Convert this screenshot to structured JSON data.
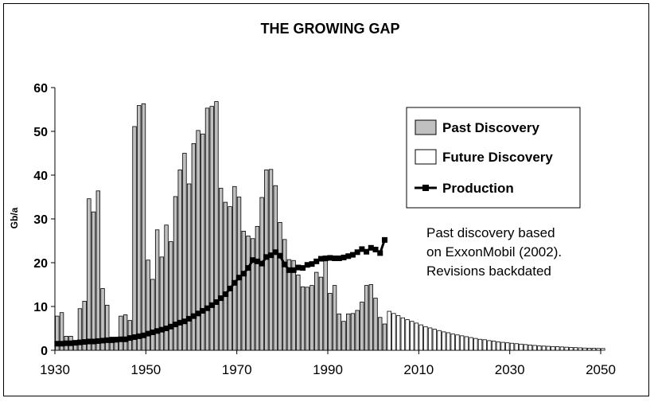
{
  "chart_data": {
    "type": "bar",
    "title": "THE GROWING GAP",
    "ylabel": "Gb/a",
    "xlabel": "",
    "ylim": [
      0,
      60
    ],
    "xlim": [
      1930,
      2050
    ],
    "yticks": [
      0,
      10,
      20,
      30,
      40,
      50,
      60
    ],
    "xticks": [
      1930,
      1950,
      1970,
      1990,
      2010,
      2030,
      2050
    ],
    "legend_position": "top-right",
    "annotation": [
      "Past discovery based",
      "on ExxonMobil (2002).",
      "Revisions backdated"
    ],
    "colors": {
      "past_discovery": "#c0c0c0",
      "future_discovery": "#ffffff",
      "production": "#000000",
      "edge": "#000000"
    },
    "series": [
      {
        "name": "Past Discovery",
        "kind": "bar",
        "start_year": 1930,
        "values": [
          7.8,
          8.6,
          3.2,
          3.2,
          1.8,
          9.5,
          11.2,
          34.6,
          31.6,
          36.4,
          14.1,
          10.3,
          3.0,
          3.0,
          7.8,
          8.1,
          6.8,
          51.1,
          55.9,
          56.3,
          20.6,
          16.2,
          27.5,
          21.3,
          28.6,
          24.8,
          35.1,
          41.2,
          45.0,
          38.0,
          47.2,
          50.2,
          49.4,
          55.3,
          55.7,
          56.8,
          37.0,
          33.8,
          32.8,
          37.4,
          35.0,
          27.2,
          26.1,
          25.5,
          28.3,
          34.9,
          41.2,
          41.3,
          37.6,
          29.2,
          25.3,
          20.7,
          20.5,
          17.2,
          14.5,
          14.4,
          14.8,
          17.8,
          16.7,
          20.4,
          13.0,
          14.8,
          8.3,
          6.6,
          8.3,
          8.4,
          9.1,
          11.0,
          14.8,
          15.0,
          11.9,
          7.5,
          6.0
        ]
      },
      {
        "name": "Future Discovery",
        "kind": "bar",
        "start_year": 2003,
        "values": [
          8.9,
          8.4,
          7.9,
          7.4,
          7.0,
          6.6,
          6.2,
          5.8,
          5.4,
          5.1,
          4.8,
          4.5,
          4.2,
          4.0,
          3.7,
          3.5,
          3.3,
          3.1,
          2.9,
          2.7,
          2.5,
          2.4,
          2.2,
          2.1,
          1.9,
          1.8,
          1.7,
          1.6,
          1.5,
          1.4,
          1.3,
          1.2,
          1.1,
          1.0,
          0.95,
          0.9,
          0.85,
          0.8,
          0.75,
          0.7,
          0.65,
          0.6,
          0.55,
          0.5,
          0.47,
          0.45,
          0.42,
          0.4
        ]
      },
      {
        "name": "Production",
        "kind": "line",
        "start_year": 1930,
        "values": [
          1.5,
          1.5,
          1.6,
          1.6,
          1.7,
          1.8,
          1.9,
          2.0,
          2.0,
          2.1,
          2.2,
          2.3,
          2.3,
          2.4,
          2.5,
          2.5,
          2.8,
          3.0,
          3.2,
          3.4,
          3.8,
          4.1,
          4.4,
          4.7,
          5.0,
          5.4,
          5.9,
          6.3,
          6.6,
          7.2,
          7.8,
          8.4,
          9.0,
          9.6,
          10.3,
          11.0,
          11.9,
          12.8,
          14.1,
          15.4,
          16.6,
          17.5,
          18.8,
          20.6,
          20.3,
          19.8,
          21.3,
          21.7,
          22.4,
          21.6,
          19.6,
          18.3,
          18.3,
          18.9,
          18.8,
          19.5,
          19.7,
          20.3,
          20.9,
          21.0,
          21.1,
          21.0,
          21.0,
          21.2,
          21.5,
          21.8,
          22.4,
          23.1,
          22.5,
          23.4,
          23.0,
          22.2,
          25.2
        ]
      }
    ]
  }
}
